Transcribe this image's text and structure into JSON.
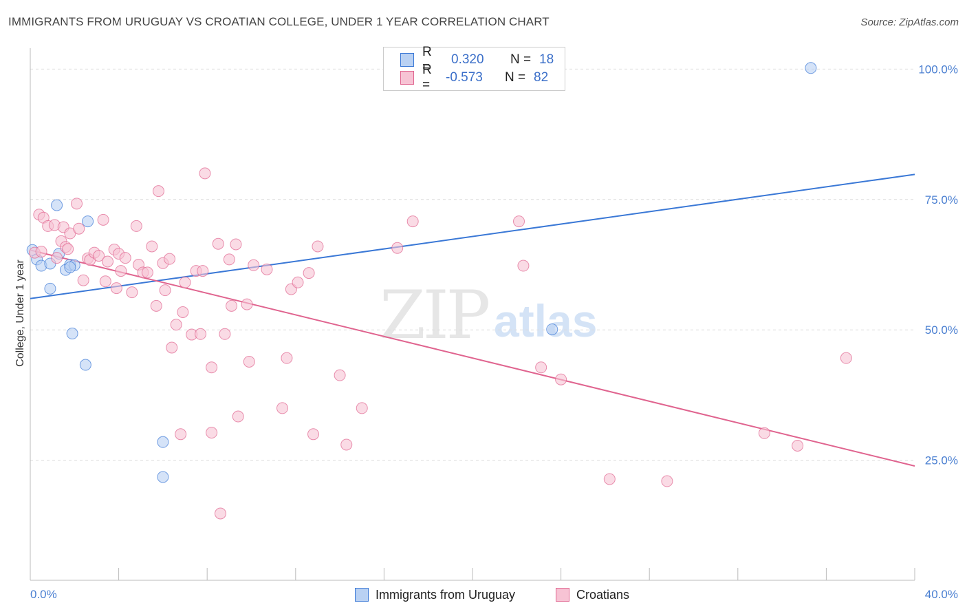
{
  "title": "IMMIGRANTS FROM URUGUAY VS CROATIAN COLLEGE, UNDER 1 YEAR CORRELATION CHART",
  "source": "Source: ZipAtlas.com",
  "watermark": {
    "zip": "ZIP",
    "atlas": "atlas"
  },
  "colors": {
    "blue": "#3a78d6",
    "blue_fill": "#b9d1f3",
    "pink": "#e0648f",
    "pink_fill": "#f7c3d4",
    "axis_text": "#4a7fd1"
  },
  "legend_top": [
    {
      "r_label": "R =",
      "r_value": "0.320",
      "n_label": "N =",
      "n_value": "18"
    },
    {
      "r_label": "R =",
      "r_value": "-0.573",
      "n_label": "N =",
      "n_value": "82"
    }
  ],
  "legend_bottom": [
    {
      "label": "Immigrants from Uruguay"
    },
    {
      "label": "Croatians"
    }
  ],
  "chart_data": {
    "type": "scatter",
    "title": "IMMIGRANTS FROM URUGUAY VS CROATIAN COLLEGE, UNDER 1 YEAR CORRELATION CHART",
    "xlabel": "",
    "ylabel": "College, Under 1 year",
    "xlim": [
      0,
      40
    ],
    "ylim": [
      2,
      104
    ],
    "x_tick_labels": [
      "0.0%",
      "40.0%"
    ],
    "y_tick_values": [
      25,
      50,
      75,
      100
    ],
    "y_tick_labels": [
      "25.0%",
      "50.0%",
      "75.0%",
      "100.0%"
    ],
    "grid": "horizontal dashed",
    "series": [
      {
        "name": "Immigrants from Uruguay",
        "color": "#3a78d6",
        "points": [
          [
            0.1,
            65.3
          ],
          [
            0.3,
            63.5
          ],
          [
            0.5,
            62.3
          ],
          [
            0.9,
            57.9
          ],
          [
            0.9,
            62.7
          ],
          [
            1.2,
            73.9
          ],
          [
            1.3,
            64.6
          ],
          [
            1.6,
            61.5
          ],
          [
            1.8,
            62.5
          ],
          [
            1.9,
            49.3
          ],
          [
            2.0,
            62.4
          ],
          [
            2.5,
            43.3
          ],
          [
            2.6,
            70.8
          ],
          [
            6.0,
            28.5
          ],
          [
            6.0,
            21.8
          ],
          [
            23.6,
            50.1
          ],
          [
            35.3,
            100.2
          ],
          [
            1.8,
            62.0
          ]
        ],
        "trend": {
          "x": [
            0,
            40
          ],
          "y": [
            56.0,
            79.8
          ]
        }
      },
      {
        "name": "Croatians",
        "color": "#e0648f",
        "points": [
          [
            0.2,
            64.8
          ],
          [
            0.4,
            72.1
          ],
          [
            0.5,
            65.0
          ],
          [
            0.6,
            71.5
          ],
          [
            0.8,
            69.9
          ],
          [
            1.1,
            70.1
          ],
          [
            1.2,
            63.8
          ],
          [
            1.4,
            67.0
          ],
          [
            1.5,
            69.7
          ],
          [
            1.6,
            65.9
          ],
          [
            1.7,
            65.5
          ],
          [
            1.8,
            68.5
          ],
          [
            2.1,
            74.2
          ],
          [
            2.2,
            69.4
          ],
          [
            2.4,
            59.5
          ],
          [
            2.6,
            63.7
          ],
          [
            2.7,
            63.4
          ],
          [
            2.9,
            64.8
          ],
          [
            3.1,
            64.2
          ],
          [
            3.3,
            71.1
          ],
          [
            3.4,
            59.3
          ],
          [
            3.5,
            63.1
          ],
          [
            3.8,
            65.4
          ],
          [
            3.9,
            58.0
          ],
          [
            4.0,
            64.6
          ],
          [
            4.1,
            61.3
          ],
          [
            4.3,
            63.8
          ],
          [
            4.6,
            57.2
          ],
          [
            4.8,
            69.9
          ],
          [
            4.9,
            62.5
          ],
          [
            5.1,
            61.0
          ],
          [
            5.3,
            61.0
          ],
          [
            5.5,
            66.0
          ],
          [
            5.7,
            54.6
          ],
          [
            5.8,
            76.6
          ],
          [
            6.0,
            62.8
          ],
          [
            6.1,
            57.6
          ],
          [
            6.3,
            63.6
          ],
          [
            6.4,
            46.6
          ],
          [
            6.6,
            51.0
          ],
          [
            6.8,
            30.0
          ],
          [
            6.9,
            53.4
          ],
          [
            7.0,
            59.1
          ],
          [
            7.3,
            49.1
          ],
          [
            7.5,
            61.3
          ],
          [
            7.7,
            49.2
          ],
          [
            7.8,
            61.3
          ],
          [
            7.9,
            80.0
          ],
          [
            8.2,
            42.8
          ],
          [
            8.2,
            30.3
          ],
          [
            8.5,
            66.5
          ],
          [
            8.6,
            14.8
          ],
          [
            8.8,
            49.2
          ],
          [
            9.0,
            63.5
          ],
          [
            9.1,
            54.6
          ],
          [
            9.3,
            66.4
          ],
          [
            9.4,
            33.4
          ],
          [
            9.8,
            54.9
          ],
          [
            9.9,
            43.9
          ],
          [
            10.1,
            62.4
          ],
          [
            10.7,
            61.6
          ],
          [
            11.4,
            35.0
          ],
          [
            11.6,
            44.6
          ],
          [
            11.8,
            57.8
          ],
          [
            12.1,
            59.1
          ],
          [
            12.6,
            60.9
          ],
          [
            12.8,
            30.0
          ],
          [
            13.0,
            66.0
          ],
          [
            14.0,
            41.3
          ],
          [
            14.3,
            28.0
          ],
          [
            15.0,
            35.0
          ],
          [
            16.6,
            65.7
          ],
          [
            17.3,
            70.8
          ],
          [
            22.1,
            70.8
          ],
          [
            22.3,
            62.3
          ],
          [
            23.1,
            42.8
          ],
          [
            24.0,
            40.5
          ],
          [
            26.2,
            21.4
          ],
          [
            28.8,
            21.0
          ],
          [
            33.2,
            30.2
          ],
          [
            34.7,
            27.8
          ],
          [
            36.9,
            44.6
          ]
        ],
        "trend": {
          "x": [
            0,
            40
          ],
          "y": [
            65.3,
            23.9
          ]
        }
      }
    ]
  }
}
